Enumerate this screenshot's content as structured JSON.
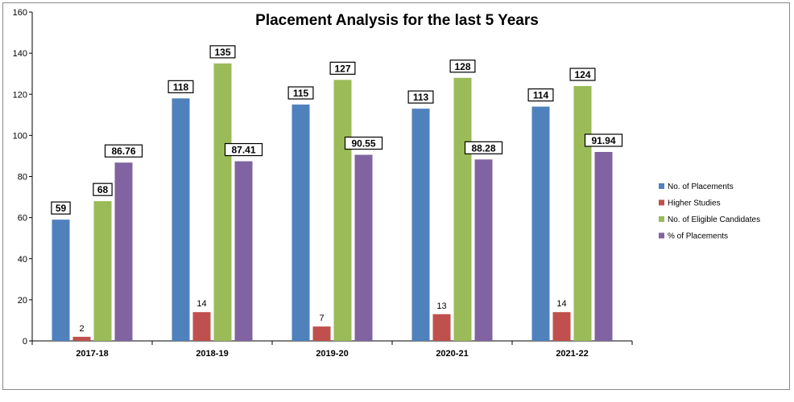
{
  "chart_data": {
    "type": "bar",
    "title": "Placement Analysis for the last 5 Years",
    "categories": [
      "2017-18",
      "2018-19",
      "2019-20",
      "2020-21",
      "2021-22"
    ],
    "ylim": [
      0,
      160
    ],
    "yticks": [
      0,
      20,
      40,
      60,
      80,
      100,
      120,
      140,
      160
    ],
    "grid": false,
    "legend_position": "right",
    "series": [
      {
        "name": "No. of Placements",
        "color": "#4f81bd",
        "values": [
          59,
          118,
          115,
          113,
          114
        ],
        "labels": [
          "59",
          "118",
          "115",
          "113",
          "114"
        ]
      },
      {
        "name": "Higher Studies",
        "color": "#c0504d",
        "values": [
          2,
          14,
          7,
          13,
          14
        ],
        "labels": [
          "2",
          "14",
          "7",
          "13",
          "14"
        ]
      },
      {
        "name": "No. of Eligible Candidates",
        "color": "#9bbb59",
        "values": [
          68,
          135,
          127,
          128,
          124
        ],
        "labels": [
          "68",
          "135",
          "127",
          "128",
          "124"
        ]
      },
      {
        "name": "% of Placements",
        "color": "#8064a2",
        "values": [
          86.76,
          87.41,
          90.55,
          88.28,
          91.94
        ],
        "labels": [
          "86.76",
          "87.41",
          "90.55",
          "88.28",
          "91.94"
        ]
      }
    ]
  }
}
